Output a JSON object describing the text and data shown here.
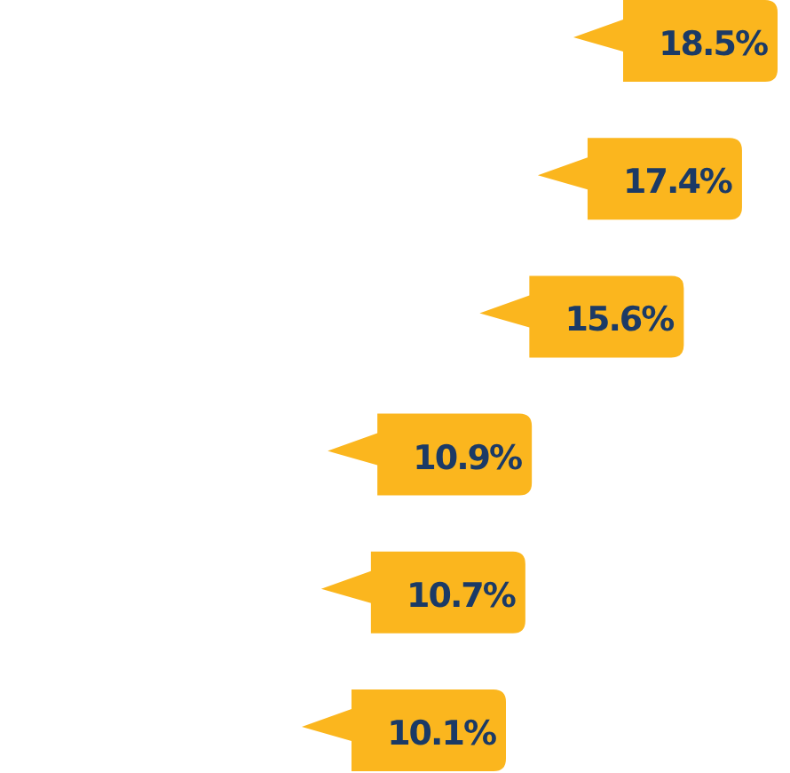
{
  "chart_data": {
    "type": "other",
    "categories": [
      null,
      null,
      null,
      null,
      null,
      null
    ],
    "values": [
      18.5,
      17.4,
      15.6,
      10.9,
      10.7,
      10.1
    ],
    "value_labels": [
      "18.5%",
      "17.4%",
      "15.6%",
      "10.9%",
      "10.7%",
      "10.1%"
    ],
    "color": "#fbb61e"
  }
}
